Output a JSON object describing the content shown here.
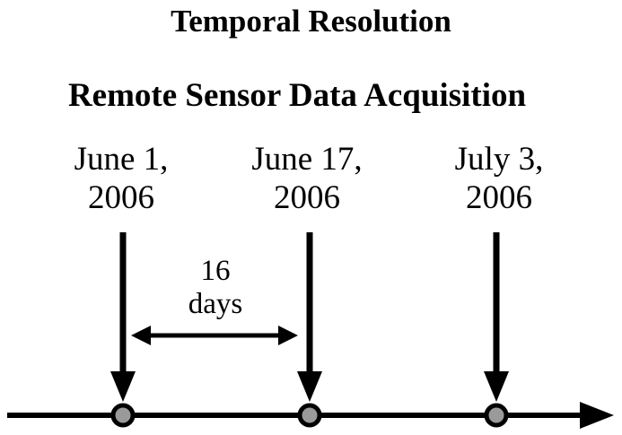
{
  "title": "Temporal Resolution",
  "subtitle": "Remote Sensor Data Acquisition",
  "acquisitions": [
    {
      "line1": "June 1,",
      "line2": "2006"
    },
    {
      "line1": "June 17,",
      "line2": "2006"
    },
    {
      "line1": "July 3,",
      "line2": "2006"
    }
  ],
  "interval": {
    "value": "16",
    "unit": "days"
  },
  "colors": {
    "line": "#000000",
    "marker_fill": "#9a9a9a",
    "marker_stroke": "#000000"
  }
}
